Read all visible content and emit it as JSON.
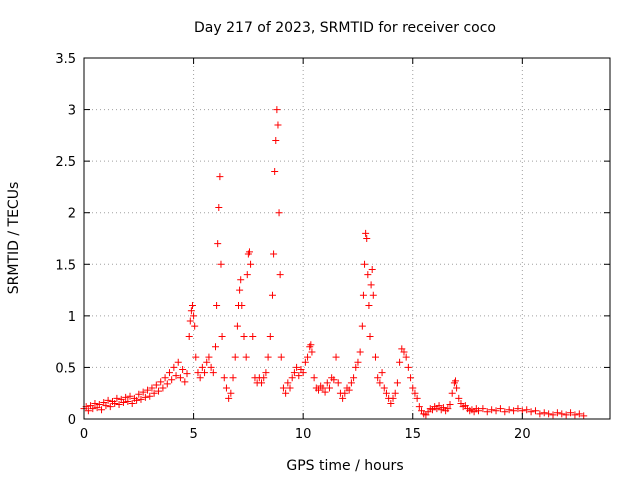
{
  "chart_data": {
    "type": "scatter",
    "title": "Day 217 of 2023, SRMTID for receiver coco",
    "xlabel": "GPS time / hours",
    "ylabel": "SRMTID / TECUs",
    "xlim": [
      0,
      24
    ],
    "ylim": [
      0,
      3.5
    ],
    "xticks": [
      0,
      5,
      10,
      15,
      20
    ],
    "xtick_labels": [
      "0",
      "5",
      "10",
      "15",
      "20"
    ],
    "yticks": [
      0,
      0.5,
      1,
      1.5,
      2,
      2.5,
      3,
      3.5
    ],
    "ytick_labels": [
      "0",
      "0.5",
      "1",
      "1.5",
      "2",
      "2.5",
      "3",
      "3.5"
    ],
    "grid": true,
    "marker": "+",
    "color": "#ff0000",
    "series": [
      {
        "name": "SRMTID",
        "points": [
          [
            0.0,
            0.1
          ],
          [
            0.1,
            0.12
          ],
          [
            0.2,
            0.08
          ],
          [
            0.3,
            0.13
          ],
          [
            0.4,
            0.1
          ],
          [
            0.5,
            0.15
          ],
          [
            0.6,
            0.11
          ],
          [
            0.7,
            0.14
          ],
          [
            0.8,
            0.09
          ],
          [
            0.9,
            0.16
          ],
          [
            1.0,
            0.13
          ],
          [
            1.1,
            0.18
          ],
          [
            1.2,
            0.12
          ],
          [
            1.3,
            0.17
          ],
          [
            1.4,
            0.15
          ],
          [
            1.5,
            0.2
          ],
          [
            1.6,
            0.14
          ],
          [
            1.7,
            0.19
          ],
          [
            1.8,
            0.16
          ],
          [
            1.9,
            0.21
          ],
          [
            2.0,
            0.17
          ],
          [
            2.1,
            0.22
          ],
          [
            2.2,
            0.15
          ],
          [
            2.3,
            0.2
          ],
          [
            2.4,
            0.18
          ],
          [
            2.5,
            0.24
          ],
          [
            2.6,
            0.19
          ],
          [
            2.7,
            0.26
          ],
          [
            2.8,
            0.21
          ],
          [
            2.9,
            0.28
          ],
          [
            3.0,
            0.22
          ],
          [
            3.1,
            0.3
          ],
          [
            3.2,
            0.25
          ],
          [
            3.3,
            0.33
          ],
          [
            3.4,
            0.27
          ],
          [
            3.5,
            0.36
          ],
          [
            3.6,
            0.3
          ],
          [
            3.7,
            0.4
          ],
          [
            3.8,
            0.34
          ],
          [
            3.9,
            0.45
          ],
          [
            4.0,
            0.38
          ],
          [
            4.1,
            0.5
          ],
          [
            4.2,
            0.42
          ],
          [
            4.3,
            0.55
          ],
          [
            4.4,
            0.4
          ],
          [
            4.5,
            0.48
          ],
          [
            4.6,
            0.36
          ],
          [
            4.7,
            0.44
          ],
          [
            4.8,
            0.8
          ],
          [
            4.85,
            0.95
          ],
          [
            4.9,
            1.05
          ],
          [
            4.95,
            1.1
          ],
          [
            5.0,
            1.0
          ],
          [
            5.05,
            0.9
          ],
          [
            5.1,
            0.6
          ],
          [
            5.2,
            0.45
          ],
          [
            5.3,
            0.4
          ],
          [
            5.4,
            0.5
          ],
          [
            5.5,
            0.45
          ],
          [
            5.6,
            0.55
          ],
          [
            5.7,
            0.6
          ],
          [
            5.8,
            0.5
          ],
          [
            5.9,
            0.45
          ],
          [
            6.0,
            0.7
          ],
          [
            6.05,
            1.1
          ],
          [
            6.1,
            1.7
          ],
          [
            6.15,
            2.05
          ],
          [
            6.2,
            2.35
          ],
          [
            6.25,
            1.5
          ],
          [
            6.3,
            0.8
          ],
          [
            6.4,
            0.4
          ],
          [
            6.5,
            0.3
          ],
          [
            6.6,
            0.2
          ],
          [
            6.7,
            0.25
          ],
          [
            6.8,
            0.4
          ],
          [
            6.9,
            0.6
          ],
          [
            7.0,
            0.9
          ],
          [
            7.05,
            1.1
          ],
          [
            7.1,
            1.25
          ],
          [
            7.15,
            1.35
          ],
          [
            7.2,
            1.1
          ],
          [
            7.3,
            0.8
          ],
          [
            7.4,
            0.6
          ],
          [
            7.45,
            1.4
          ],
          [
            7.5,
            1.6
          ],
          [
            7.55,
            1.62
          ],
          [
            7.6,
            1.5
          ],
          [
            7.7,
            0.8
          ],
          [
            7.8,
            0.4
          ],
          [
            7.9,
            0.35
          ],
          [
            8.0,
            0.4
          ],
          [
            8.1,
            0.35
          ],
          [
            8.2,
            0.4
          ],
          [
            8.3,
            0.45
          ],
          [
            8.4,
            0.6
          ],
          [
            8.5,
            0.8
          ],
          [
            8.6,
            1.2
          ],
          [
            8.65,
            1.6
          ],
          [
            8.7,
            2.4
          ],
          [
            8.75,
            2.7
          ],
          [
            8.8,
            3.0
          ],
          [
            8.85,
            2.85
          ],
          [
            8.9,
            2.0
          ],
          [
            8.95,
            1.4
          ],
          [
            9.0,
            0.6
          ],
          [
            9.1,
            0.3
          ],
          [
            9.2,
            0.25
          ],
          [
            9.3,
            0.35
          ],
          [
            9.4,
            0.3
          ],
          [
            9.5,
            0.4
          ],
          [
            9.6,
            0.45
          ],
          [
            9.7,
            0.5
          ],
          [
            9.8,
            0.42
          ],
          [
            9.9,
            0.48
          ],
          [
            10.0,
            0.45
          ],
          [
            10.1,
            0.55
          ],
          [
            10.2,
            0.6
          ],
          [
            10.3,
            0.7
          ],
          [
            10.35,
            0.72
          ],
          [
            10.4,
            0.65
          ],
          [
            10.5,
            0.4
          ],
          [
            10.6,
            0.3
          ],
          [
            10.7,
            0.28
          ],
          [
            10.8,
            0.32
          ],
          [
            10.9,
            0.3
          ],
          [
            11.0,
            0.26
          ],
          [
            11.1,
            0.35
          ],
          [
            11.2,
            0.3
          ],
          [
            11.3,
            0.4
          ],
          [
            11.4,
            0.38
          ],
          [
            11.5,
            0.6
          ],
          [
            11.6,
            0.35
          ],
          [
            11.7,
            0.25
          ],
          [
            11.8,
            0.2
          ],
          [
            11.9,
            0.25
          ],
          [
            12.0,
            0.3
          ],
          [
            12.1,
            0.28
          ],
          [
            12.2,
            0.35
          ],
          [
            12.3,
            0.4
          ],
          [
            12.4,
            0.5
          ],
          [
            12.5,
            0.55
          ],
          [
            12.6,
            0.65
          ],
          [
            12.7,
            0.9
          ],
          [
            12.75,
            1.2
          ],
          [
            12.8,
            1.5
          ],
          [
            12.85,
            1.8
          ],
          [
            12.9,
            1.75
          ],
          [
            12.95,
            1.4
          ],
          [
            13.0,
            1.1
          ],
          [
            13.05,
            0.8
          ],
          [
            13.1,
            1.3
          ],
          [
            13.15,
            1.45
          ],
          [
            13.2,
            1.2
          ],
          [
            13.3,
            0.6
          ],
          [
            13.4,
            0.4
          ],
          [
            13.5,
            0.35
          ],
          [
            13.6,
            0.45
          ],
          [
            13.7,
            0.3
          ],
          [
            13.8,
            0.25
          ],
          [
            13.9,
            0.2
          ],
          [
            14.0,
            0.15
          ],
          [
            14.1,
            0.2
          ],
          [
            14.2,
            0.25
          ],
          [
            14.3,
            0.35
          ],
          [
            14.4,
            0.55
          ],
          [
            14.5,
            0.68
          ],
          [
            14.6,
            0.65
          ],
          [
            14.7,
            0.6
          ],
          [
            14.8,
            0.5
          ],
          [
            14.9,
            0.4
          ],
          [
            15.0,
            0.3
          ],
          [
            15.1,
            0.25
          ],
          [
            15.2,
            0.2
          ],
          [
            15.3,
            0.12
          ],
          [
            15.4,
            0.08
          ],
          [
            15.5,
            0.05
          ],
          [
            15.6,
            0.04
          ],
          [
            15.7,
            0.07
          ],
          [
            15.8,
            0.1
          ],
          [
            15.9,
            0.09
          ],
          [
            16.0,
            0.12
          ],
          [
            16.1,
            0.1
          ],
          [
            16.2,
            0.13
          ],
          [
            16.3,
            0.09
          ],
          [
            16.4,
            0.11
          ],
          [
            16.5,
            0.08
          ],
          [
            16.6,
            0.1
          ],
          [
            16.7,
            0.14
          ],
          [
            16.8,
            0.25
          ],
          [
            16.9,
            0.35
          ],
          [
            16.95,
            0.37
          ],
          [
            17.0,
            0.3
          ],
          [
            17.1,
            0.2
          ],
          [
            17.2,
            0.15
          ],
          [
            17.3,
            0.12
          ],
          [
            17.4,
            0.13
          ],
          [
            17.5,
            0.1
          ],
          [
            17.6,
            0.08
          ],
          [
            17.7,
            0.09
          ],
          [
            17.8,
            0.07
          ],
          [
            17.9,
            0.1
          ],
          [
            18.0,
            0.08
          ],
          [
            18.2,
            0.1
          ],
          [
            18.4,
            0.07
          ],
          [
            18.6,
            0.09
          ],
          [
            18.8,
            0.08
          ],
          [
            19.0,
            0.1
          ],
          [
            19.2,
            0.07
          ],
          [
            19.4,
            0.09
          ],
          [
            19.6,
            0.08
          ],
          [
            19.8,
            0.1
          ],
          [
            20.0,
            0.08
          ],
          [
            20.2,
            0.09
          ],
          [
            20.4,
            0.07
          ],
          [
            20.6,
            0.08
          ],
          [
            20.8,
            0.05
          ],
          [
            21.0,
            0.06
          ],
          [
            21.2,
            0.05
          ],
          [
            21.4,
            0.04
          ],
          [
            21.6,
            0.06
          ],
          [
            21.8,
            0.05
          ],
          [
            22.0,
            0.04
          ],
          [
            22.2,
            0.06
          ],
          [
            22.4,
            0.04
          ],
          [
            22.6,
            0.05
          ],
          [
            22.8,
            0.03
          ]
        ]
      }
    ]
  }
}
